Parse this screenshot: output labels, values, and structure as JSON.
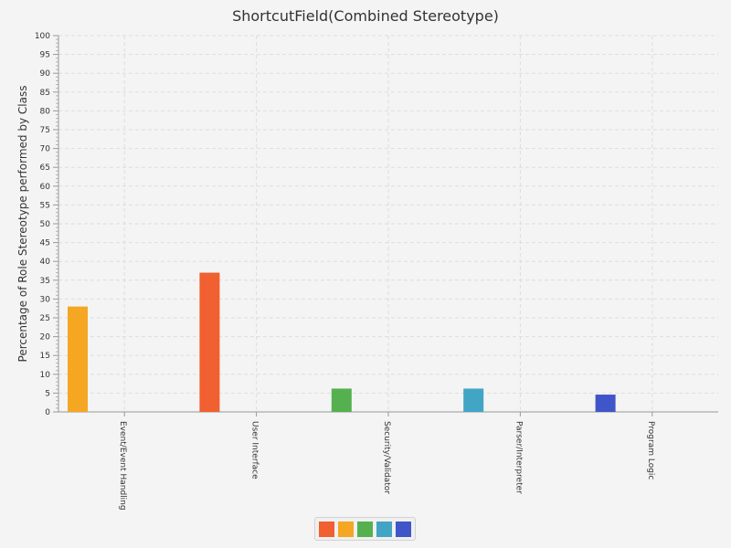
{
  "chart_data": {
    "type": "bar",
    "title": "ShortcutField(Combined Stereotype)",
    "ylabel": "Percentage of Role Stereotype performed by Class",
    "xlabel": "",
    "ylim": [
      0,
      100
    ],
    "y_tick_step": 5,
    "grid": true,
    "legend_position": "bottom",
    "categories": [
      "Event/Event Handling",
      "User Interface",
      "Security/Validator",
      "Parser/Interpreter",
      "Program Logic"
    ],
    "series": [
      {
        "color": "#f06030",
        "values": [
          null,
          37,
          null,
          null,
          null
        ]
      },
      {
        "color": "#f5a623",
        "values": [
          28,
          null,
          null,
          null,
          null
        ]
      },
      {
        "color": "#55b050",
        "values": [
          null,
          null,
          6.2,
          null,
          null
        ]
      },
      {
        "color": "#42a5c5",
        "values": [
          null,
          null,
          null,
          6.2,
          null
        ]
      },
      {
        "color": "#4055c8",
        "values": [
          null,
          null,
          null,
          null,
          4.6
        ]
      }
    ]
  }
}
